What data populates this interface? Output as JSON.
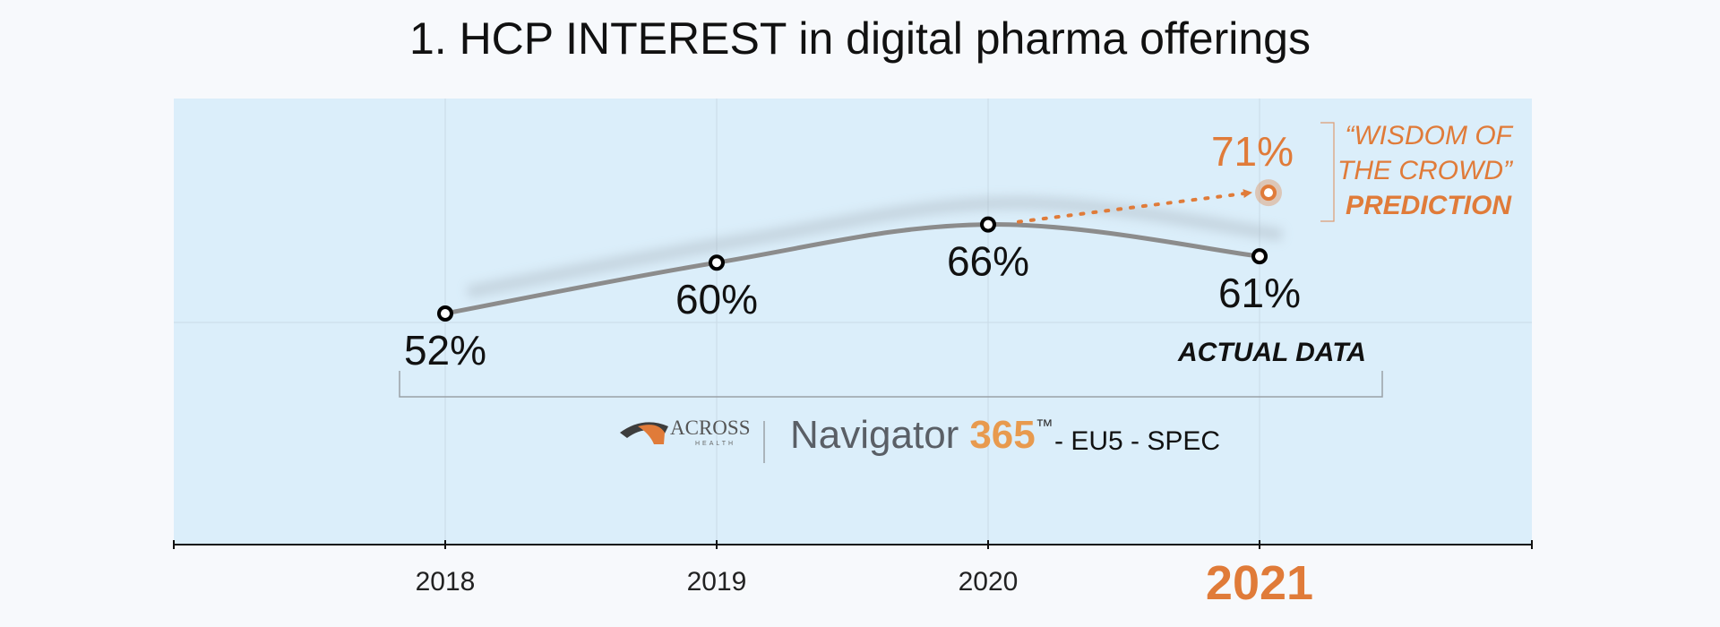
{
  "chart_data": {
    "type": "line",
    "title": "1. HCP INTEREST in digital pharma offerings",
    "categories": [
      "2018",
      "2019",
      "2020",
      "2021"
    ],
    "highlight_category": "2021",
    "series": [
      {
        "values": [
          52,
          60,
          66,
          61
        ],
        "labels": [
          "52%",
          "60%",
          "66%",
          "61%"
        ]
      }
    ],
    "prediction": {
      "category": "2021",
      "value": 71,
      "label": "71%"
    },
    "annotations": {
      "actual": "ACTUAL DATA",
      "crowd_line1": "“WISDOM OF",
      "crowd_line2": "THE CROWD”",
      "crowd_line3": "PREDICTION"
    },
    "grid": true,
    "ylim": [
      40,
      90
    ]
  },
  "branding": {
    "logo_text": "ACROSS",
    "logo_subtext": "HEALTH",
    "product_name": "Navigator",
    "product_number": "365",
    "trademark": "™",
    "suffix": "- EU5 - SPEC"
  },
  "colors": {
    "plot_bg": "#dbeefa",
    "line": "#8c8c8c",
    "accent": "#e07b39",
    "brand_gray": "#5a5f66"
  }
}
